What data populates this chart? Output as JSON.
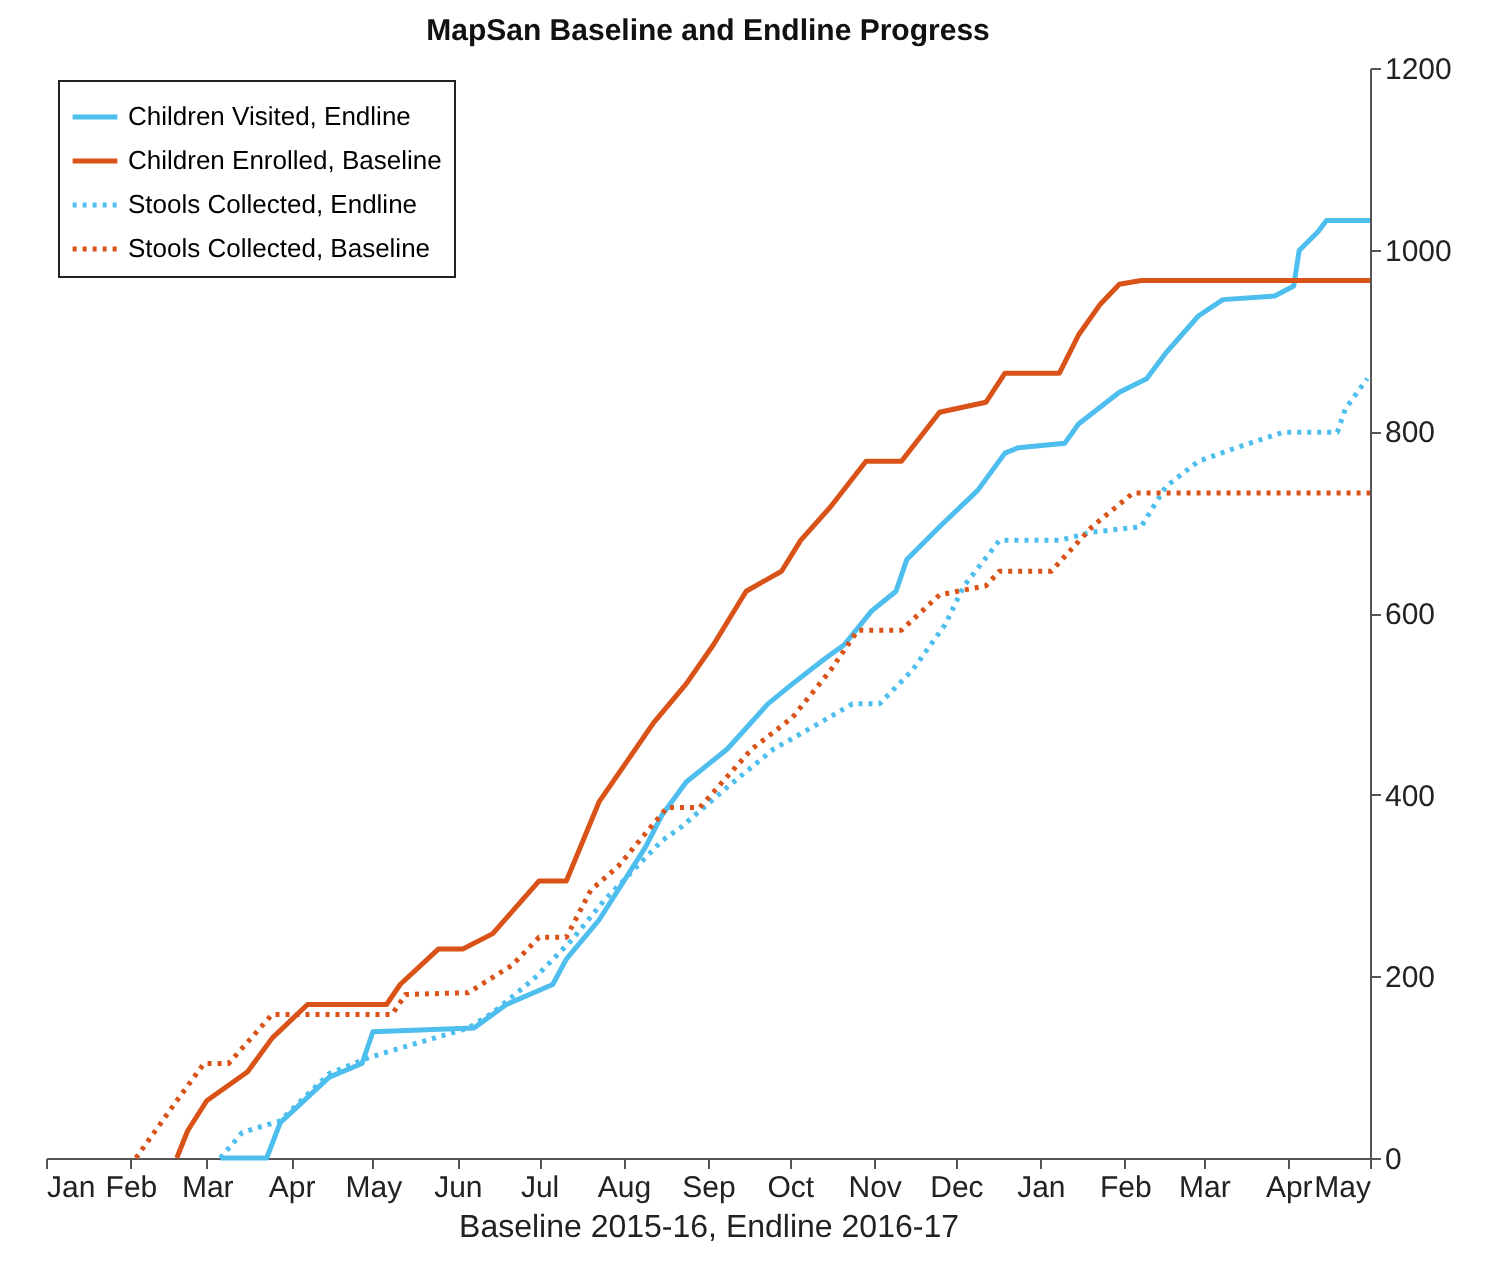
{
  "chart_data": {
    "type": "line",
    "title": "MapSan Baseline and Endline Progress",
    "xlabel": "Baseline 2015-16, Endline 2016-17",
    "xlim": [
      "2015-01-01",
      "2016-05-01"
    ],
    "ylim": [
      0,
      1200
    ],
    "yticks": [
      0,
      200,
      400,
      600,
      800,
      1000,
      1200
    ],
    "xticks": [
      {
        "value": "2015-01-01",
        "label": "Jan"
      },
      {
        "value": "2015-02-01",
        "label": "Feb"
      },
      {
        "value": "2015-03-01",
        "label": "Mar"
      },
      {
        "value": "2015-04-01",
        "label": "Apr"
      },
      {
        "value": "2015-05-01",
        "label": "May"
      },
      {
        "value": "2015-06-01",
        "label": "Jun"
      },
      {
        "value": "2015-07-01",
        "label": "Jul"
      },
      {
        "value": "2015-08-01",
        "label": "Aug"
      },
      {
        "value": "2015-09-01",
        "label": "Sep"
      },
      {
        "value": "2015-10-01",
        "label": "Oct"
      },
      {
        "value": "2015-11-01",
        "label": "Nov"
      },
      {
        "value": "2015-12-01",
        "label": "Dec"
      },
      {
        "value": "2016-01-01",
        "label": "Jan"
      },
      {
        "value": "2016-02-01",
        "label": "Feb"
      },
      {
        "value": "2016-03-01",
        "label": "Mar"
      },
      {
        "value": "2016-04-01",
        "label": "Apr"
      },
      {
        "value": "2016-05-01",
        "label": "May"
      }
    ],
    "grid": false,
    "legend": "top left",
    "marker": "none",
    "series": [
      {
        "name": "Children Visited, Endline",
        "color": "#4dbeee",
        "line_style": "solid",
        "x": [
          "2015-03-06",
          "2015-03-23",
          "2015-03-28",
          "2015-04-15",
          "2015-04-27",
          "2015-05-01",
          "2015-06-07",
          "2015-06-19",
          "2015-07-06",
          "2015-07-11",
          "2015-07-23",
          "2015-08-09",
          "2015-08-15",
          "2015-08-24",
          "2015-09-08",
          "2015-09-23",
          "2015-10-02",
          "2015-10-14",
          "2015-10-21",
          "2015-10-31",
          "2015-11-09",
          "2015-11-13",
          "2015-11-25",
          "2015-12-09",
          "2015-12-19",
          "2015-12-24",
          "2016-01-10",
          "2016-01-15",
          "2016-01-30",
          "2016-02-09",
          "2016-02-16",
          "2016-02-28",
          "2016-03-08",
          "2016-03-27",
          "2016-04-03",
          "2016-04-05",
          "2016-04-12",
          "2016-04-15",
          "2016-05-01"
        ],
        "values": [
          0,
          0,
          39,
          89,
          104,
          139,
          143,
          169,
          191,
          219,
          262,
          342,
          377,
          414,
          450,
          500,
          522,
          550,
          565,
          602,
          624,
          659,
          695,
          735,
          776,
          782,
          787,
          808,
          843,
          858,
          886,
          927,
          945,
          949,
          960,
          999,
          1020,
          1032,
          1032
        ]
      },
      {
        "name": "Children Enrolled, Baseline",
        "color": "#d95319",
        "line_style": "solid",
        "x": [
          "2015-02-18",
          "2015-02-22",
          "2015-03-01",
          "2015-03-16",
          "2015-03-25",
          "2015-04-07",
          "2015-05-06",
          "2015-05-11",
          "2015-05-25",
          "2015-06-03",
          "2015-06-14",
          "2015-07-01",
          "2015-07-11",
          "2015-07-23",
          "2015-08-12",
          "2015-08-24",
          "2015-09-03",
          "2015-09-15",
          "2015-09-28",
          "2015-10-05",
          "2015-10-16",
          "2015-10-29",
          "2015-11-11",
          "2015-11-25",
          "2015-12-12",
          "2015-12-19",
          "2016-01-08",
          "2016-01-15",
          "2016-01-23",
          "2016-01-30",
          "2016-02-07",
          "2016-05-01"
        ],
        "values": [
          0,
          30,
          63,
          95,
          132,
          169,
          169,
          191,
          230,
          230,
          247,
          305,
          305,
          392,
          479,
          522,
          565,
          624,
          646,
          680,
          717,
          767,
          767,
          821,
          832,
          864,
          864,
          906,
          940,
          962,
          966,
          966
        ]
      },
      {
        "name": "Stools Collected, Endline",
        "color": "#4dbeee",
        "line_style": "dotted",
        "x": [
          "2015-03-06",
          "2015-03-14",
          "2015-03-28",
          "2015-04-15",
          "2015-04-29",
          "2015-05-11",
          "2015-06-05",
          "2015-06-14",
          "2015-06-29",
          "2015-07-13",
          "2015-07-25",
          "2015-08-15",
          "2015-08-22",
          "2015-09-08",
          "2015-09-25",
          "2015-10-12",
          "2015-10-24",
          "2015-11-03",
          "2015-11-15",
          "2015-11-27",
          "2015-12-04",
          "2015-12-17",
          "2016-01-08",
          "2016-01-20",
          "2016-02-07",
          "2016-02-16",
          "2016-02-28",
          "2016-03-13",
          "2016-03-30",
          "2016-04-19",
          "2016-04-22",
          "2016-04-30"
        ],
        "values": [
          0,
          28,
          41,
          93,
          110,
          121,
          143,
          160,
          197,
          240,
          284,
          349,
          364,
          408,
          450,
          479,
          500,
          500,
          537,
          587,
          630,
          680,
          680,
          689,
          695,
          739,
          767,
          782,
          799,
          799,
          825,
          858
        ]
      },
      {
        "name": "Stools Collected, Baseline",
        "color": "#d95319",
        "line_style": "dotted",
        "x": [
          "2015-02-03",
          "2015-02-18",
          "2015-02-28",
          "2015-03-09",
          "2015-03-25",
          "2015-05-08",
          "2015-05-13",
          "2015-06-05",
          "2015-06-21",
          "2015-07-01",
          "2015-07-11",
          "2015-07-20",
          "2015-07-30",
          "2015-08-17",
          "2015-08-29",
          "2015-09-17",
          "2015-10-02",
          "2015-10-16",
          "2015-10-26",
          "2015-11-11",
          "2015-11-25",
          "2015-12-12",
          "2015-12-17",
          "2016-01-05",
          "2016-01-20",
          "2016-02-04",
          "2016-05-01"
        ],
        "values": [
          0,
          63,
          104,
          104,
          158,
          158,
          180,
          182,
          212,
          243,
          243,
          295,
          321,
          386,
          386,
          450,
          485,
          537,
          581,
          581,
          620,
          630,
          646,
          646,
          695,
          732,
          732
        ]
      }
    ]
  }
}
